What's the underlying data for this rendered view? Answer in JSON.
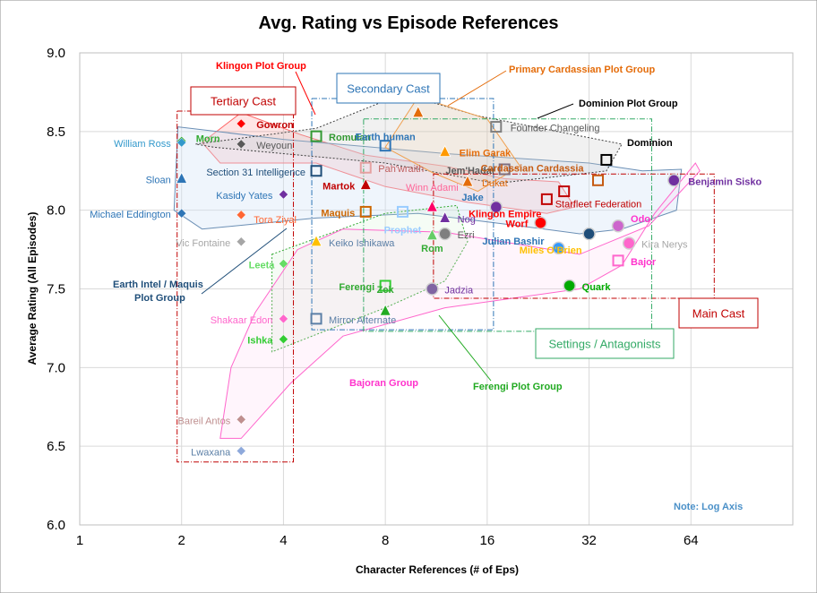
{
  "chart_data": {
    "type": "scatter",
    "title": "Avg.  Rating vs Episode References",
    "xlabel": "Character References (# of Eps)",
    "ylabel": "Average Rating (All Episodes)",
    "xscale": "log2",
    "xlim": [
      1,
      128
    ],
    "ylim": [
      6.0,
      9.0
    ],
    "xticks": [
      1,
      2,
      4,
      8,
      16,
      32,
      64
    ],
    "yticks": [
      6.0,
      6.5,
      7.0,
      7.5,
      8.0,
      8.5,
      9.0
    ],
    "ytick_labels": [
      "6.0",
      "6.5",
      "7.0",
      "7.5",
      "8.0",
      "8.5",
      "9.0"
    ],
    "note": "Note: Log Axis",
    "points": [
      {
        "label": "Gowron",
        "x": 3,
        "y": 8.55,
        "shape": "diamond",
        "color": "#FF0000"
      },
      {
        "label": "Morn",
        "x": 2,
        "y": 8.44,
        "shape": "diamond",
        "color": "#33AA33"
      },
      {
        "label": "William  Ross",
        "x": 2,
        "y": 8.43,
        "shape": "diamond",
        "color": "#3399CC"
      },
      {
        "label": "Weyoun",
        "x": 3,
        "y": 8.42,
        "shape": "diamond",
        "color": "#595959"
      },
      {
        "label": "Sloan",
        "x": 2,
        "y": 8.2,
        "shape": "triangle",
        "color": "#2E75B6"
      },
      {
        "label": "Section 31  Intelligence",
        "x": 5,
        "y": 8.25,
        "shape": "square",
        "color": "#1F4E79"
      },
      {
        "label": "Kasidy  Yates",
        "x": 4,
        "y": 8.1,
        "shape": "diamond",
        "color": "#7030A0"
      },
      {
        "label": "Michael  Eddington",
        "x": 2,
        "y": 7.98,
        "shape": "diamond",
        "color": "#2E75B6"
      },
      {
        "label": "Tora  Ziyal",
        "x": 3,
        "y": 7.97,
        "shape": "diamond",
        "color": "#FF6633"
      },
      {
        "label": "Vic  Fontaine",
        "x": 3,
        "y": 7.8,
        "shape": "diamond",
        "color": "#A6A6A6"
      },
      {
        "label": "Keiko  Ishikawa",
        "x": 5,
        "y": 7.8,
        "shape": "triangle",
        "color": "#FFC000"
      },
      {
        "label": "Leeta",
        "x": 4,
        "y": 7.66,
        "shape": "diamond",
        "color": "#66DD66"
      },
      {
        "label": "Shakaar  Edon",
        "x": 4,
        "y": 7.31,
        "shape": "diamond",
        "color": "#FF66CC"
      },
      {
        "label": "Ishka",
        "x": 4,
        "y": 7.18,
        "shape": "diamond",
        "color": "#33CC33"
      },
      {
        "label": "Bareil  Antos",
        "x": 3,
        "y": 6.67,
        "shape": "diamond",
        "color": "#BF8F8F"
      },
      {
        "label": "Lwaxana",
        "x": 3,
        "y": 6.47,
        "shape": "diamond",
        "color": "#8EA9DB"
      },
      {
        "label": "Romulan",
        "x": 5,
        "y": 8.47,
        "shape": "square",
        "color": "#339933"
      },
      {
        "label": "Earth  human",
        "x": 8,
        "y": 8.41,
        "shape": "square",
        "color": "#2E75B6"
      },
      {
        "label": "Martok",
        "x": 7,
        "y": 8.16,
        "shape": "triangle",
        "color": "#C00000"
      },
      {
        "label": "Maquis",
        "x": 7,
        "y": 7.99,
        "shape": "square",
        "color": "#CC6600"
      },
      {
        "label": "Pah'wraith",
        "x": 7,
        "y": 8.27,
        "shape": "square",
        "color": "#E6A0A0"
      },
      {
        "label": "Prophet",
        "x": 9,
        "y": 7.99,
        "shape": "square",
        "color": "#99CCFF"
      },
      {
        "label": "Mirror  Alternate",
        "x": 5,
        "y": 7.31,
        "shape": "square",
        "color": "#5B7FA6"
      },
      {
        "label": "Ferengi",
        "x": 8,
        "y": 7.52,
        "shape": "square",
        "color": "#33CC33"
      },
      {
        "label": "Zek",
        "x": 8,
        "y": 7.36,
        "shape": "triangle",
        "color": "#22AA22"
      },
      {
        "label": "Winn  Adami",
        "x": 11,
        "y": 8.02,
        "shape": "triangle",
        "color": "#FF0066"
      },
      {
        "label": "Nog",
        "x": 12,
        "y": 7.95,
        "shape": "triangle",
        "color": "#7030A0"
      },
      {
        "label": "Rom",
        "x": 11,
        "y": 7.84,
        "shape": "triangle",
        "color": "#66CC66"
      },
      {
        "label": "Ezri",
        "x": 12,
        "y": 7.85,
        "shape": "circle",
        "color": "#7F7F7F"
      },
      {
        "label": "Jadzia",
        "x": 11,
        "y": 7.5,
        "shape": "circle",
        "color": "#8064A2"
      },
      {
        "label": "Elim  Garak",
        "x": 12,
        "y": 8.37,
        "shape": "triangle",
        "color": "#FF9900"
      },
      {
        "label": "Jem'Hadar",
        "x": 18,
        "y": 8.26,
        "shape": "square",
        "color": "#7F6F7F"
      },
      {
        "label": "Dukat",
        "x": 14,
        "y": 8.18,
        "shape": "triangle",
        "color": "#E46C0A"
      },
      {
        "label": "Primary Cardassian",
        "x": 10,
        "y": 8.62,
        "shape": "triangle",
        "color": "#E46C0A"
      },
      {
        "label": "Founder  Changeling",
        "x": 17,
        "y": 8.53,
        "shape": "square",
        "color": "#7F7F7F"
      },
      {
        "label": "Dominion",
        "x": 36,
        "y": 8.32,
        "shape": "square",
        "color": "#000000"
      },
      {
        "label": "Cardassian  Cardassia",
        "x": 34,
        "y": 8.19,
        "shape": "square",
        "color": "#C55A11"
      },
      {
        "label": "Starfleet  Federation",
        "x": 27,
        "y": 8.12,
        "shape": "square",
        "color": "#C00000"
      },
      {
        "label": "Klingon  Empire",
        "x": 24,
        "y": 8.07,
        "shape": "square",
        "color": "#C00000"
      },
      {
        "label": "Jake",
        "x": 17,
        "y": 8.02,
        "shape": "circle",
        "color": "#7030A0"
      },
      {
        "label": "Worf",
        "x": 23,
        "y": 7.92,
        "shape": "circle",
        "color": "#FF0000"
      },
      {
        "label": "Julian  Bashir",
        "x": 26,
        "y": 7.76,
        "shape": "circle",
        "color": "#3399FF"
      },
      {
        "label": "Miles  O'Brien",
        "x": 32,
        "y": 7.85,
        "shape": "circle",
        "color": "#1F4E79"
      },
      {
        "label": "Odo",
        "x": 39,
        "y": 7.9,
        "shape": "circle",
        "color": "#CC66CC"
      },
      {
        "label": "Kira  Nerys",
        "x": 42,
        "y": 7.79,
        "shape": "circle",
        "color": "#FF66CC"
      },
      {
        "label": "Bajor",
        "x": 39,
        "y": 7.68,
        "shape": "square",
        "color": "#FF66CC"
      },
      {
        "label": "Quark",
        "x": 28,
        "y": 7.52,
        "shape": "circle",
        "color": "#00AA00"
      },
      {
        "label": "Benjamin  Sisko",
        "x": 57,
        "y": 8.19,
        "shape": "circle",
        "color": "#7030A0"
      }
    ],
    "group_labels": {
      "klingon": "Klingon Plot Group",
      "cardassian": "Primary Cardassian Plot Group",
      "dominion_group": "Dominion Plot Group",
      "dominion": "Dominion",
      "earth_intel": "Earth Intel / Maquis Plot Group",
      "bajoran": "Bajoran Group",
      "ferengi": "Ferengi Plot Group"
    },
    "boxes": {
      "tertiary": "Tertiary Cast",
      "secondary": "Secondary Cast",
      "main": "Main Cast",
      "settings": "Settings / Antagonists"
    }
  }
}
